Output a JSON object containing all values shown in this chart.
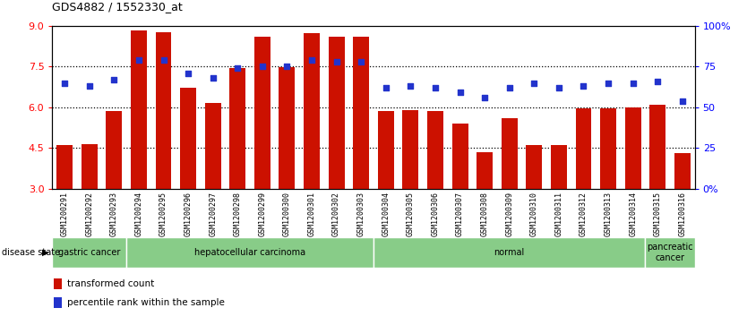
{
  "title": "GDS4882 / 1552330_at",
  "samples": [
    "GSM1200291",
    "GSM1200292",
    "GSM1200293",
    "GSM1200294",
    "GSM1200295",
    "GSM1200296",
    "GSM1200297",
    "GSM1200298",
    "GSM1200299",
    "GSM1200300",
    "GSM1200301",
    "GSM1200302",
    "GSM1200303",
    "GSM1200304",
    "GSM1200305",
    "GSM1200306",
    "GSM1200307",
    "GSM1200308",
    "GSM1200309",
    "GSM1200310",
    "GSM1200311",
    "GSM1200312",
    "GSM1200313",
    "GSM1200314",
    "GSM1200315",
    "GSM1200316"
  ],
  "bar_values": [
    4.6,
    4.65,
    5.85,
    8.82,
    8.78,
    6.72,
    6.15,
    7.45,
    8.62,
    7.49,
    8.75,
    8.62,
    8.62,
    5.85,
    5.9,
    5.85,
    5.4,
    4.35,
    5.6,
    4.62,
    4.62,
    5.95,
    5.95,
    6.0,
    6.1,
    4.3
  ],
  "dot_values": [
    65,
    63,
    67,
    79,
    79,
    71,
    68,
    74,
    75,
    75,
    79,
    78,
    78,
    62,
    63,
    62,
    59,
    56,
    62,
    65,
    62,
    63,
    65,
    65,
    66,
    54
  ],
  "ylim_left": [
    3,
    9
  ],
  "ylim_right": [
    0,
    100
  ],
  "yticks_left": [
    3,
    4.5,
    6,
    7.5,
    9
  ],
  "yticks_right": [
    0,
    25,
    50,
    75,
    100
  ],
  "ytick_labels_right": [
    "0%",
    "25",
    "50",
    "75",
    "100%"
  ],
  "bar_color": "#CC1100",
  "dot_color": "#2233CC",
  "disease_groups": [
    {
      "label": "gastric cancer",
      "start": 0,
      "end": 2,
      "color": "#88CC88"
    },
    {
      "label": "hepatocellular carcinoma",
      "start": 3,
      "end": 12,
      "color": "#88CC88"
    },
    {
      "label": "normal",
      "start": 13,
      "end": 23,
      "color": "#88CC88"
    },
    {
      "label": "pancreatic\ncancer",
      "start": 24,
      "end": 25,
      "color": "#88CC88"
    }
  ],
  "hline_values": [
    4.5,
    6.0,
    7.5
  ]
}
